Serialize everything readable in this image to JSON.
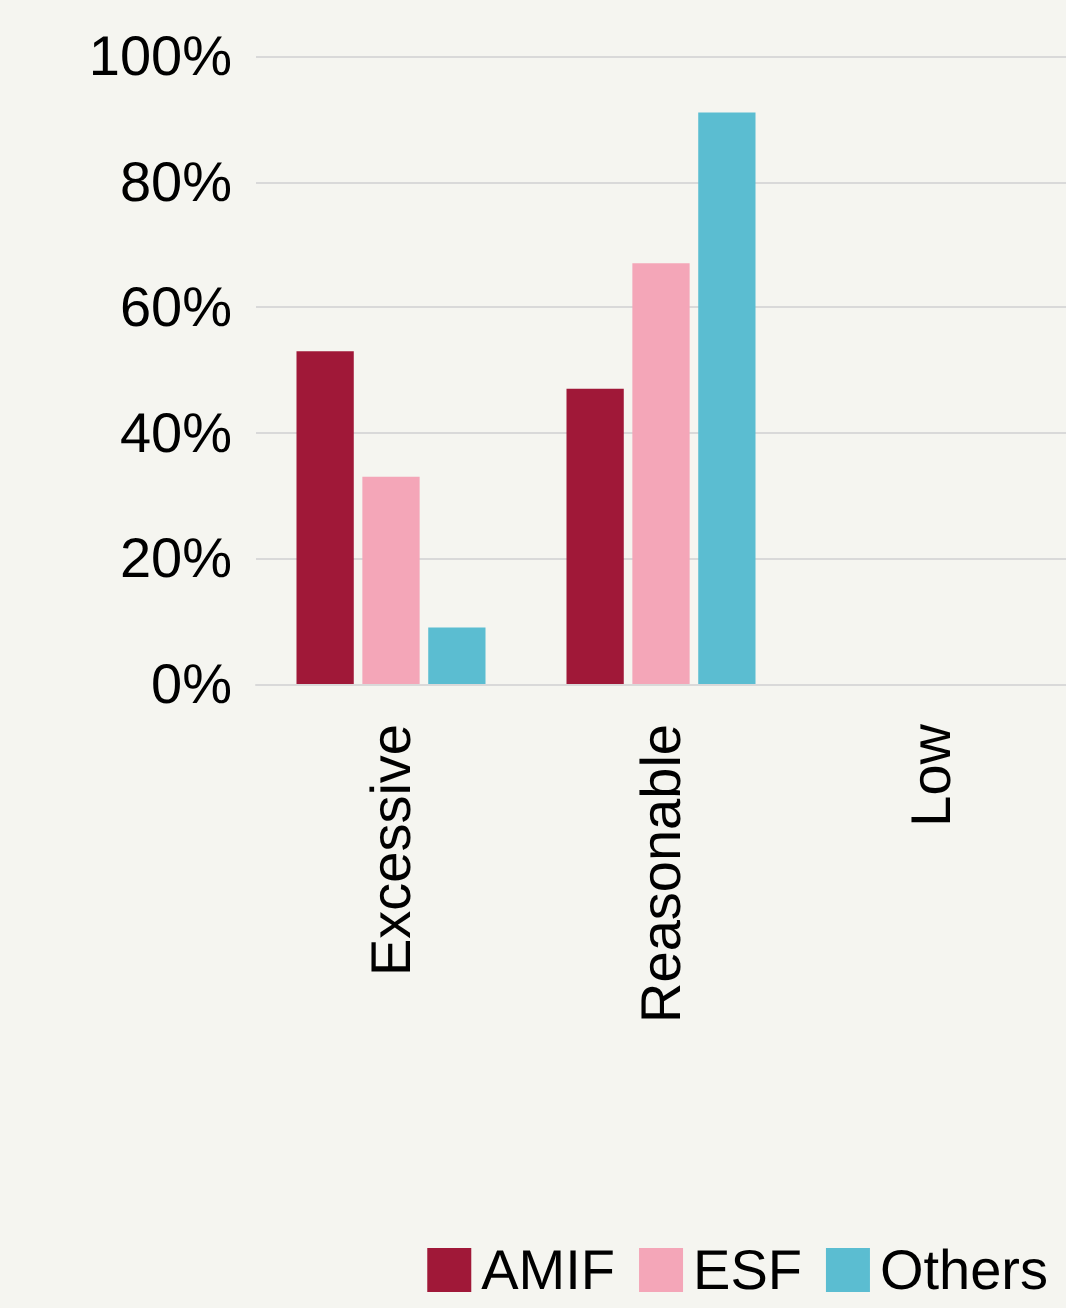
{
  "chart_data": {
    "type": "bar",
    "categories": [
      "Excessive",
      "Reasonable",
      "Low"
    ],
    "series": [
      {
        "name": "AMIF",
        "color": "#a01838",
        "values": [
          53,
          47,
          0
        ]
      },
      {
        "name": "ESF",
        "color": "#f4a6b8",
        "values": [
          33,
          67,
          0
        ]
      },
      {
        "name": "Others",
        "color": "#5bbdd1",
        "values": [
          9,
          91,
          0
        ]
      }
    ],
    "ylim": [
      0,
      100
    ],
    "yticks": [
      {
        "value": 0,
        "label": "0%"
      },
      {
        "value": 20,
        "label": "20%"
      },
      {
        "value": 40,
        "label": "40%"
      },
      {
        "value": 60,
        "label": "60%"
      },
      {
        "value": 80,
        "label": "80%"
      },
      {
        "value": 100,
        "label": "100%"
      }
    ],
    "grid": "y",
    "legend": "bottom"
  }
}
